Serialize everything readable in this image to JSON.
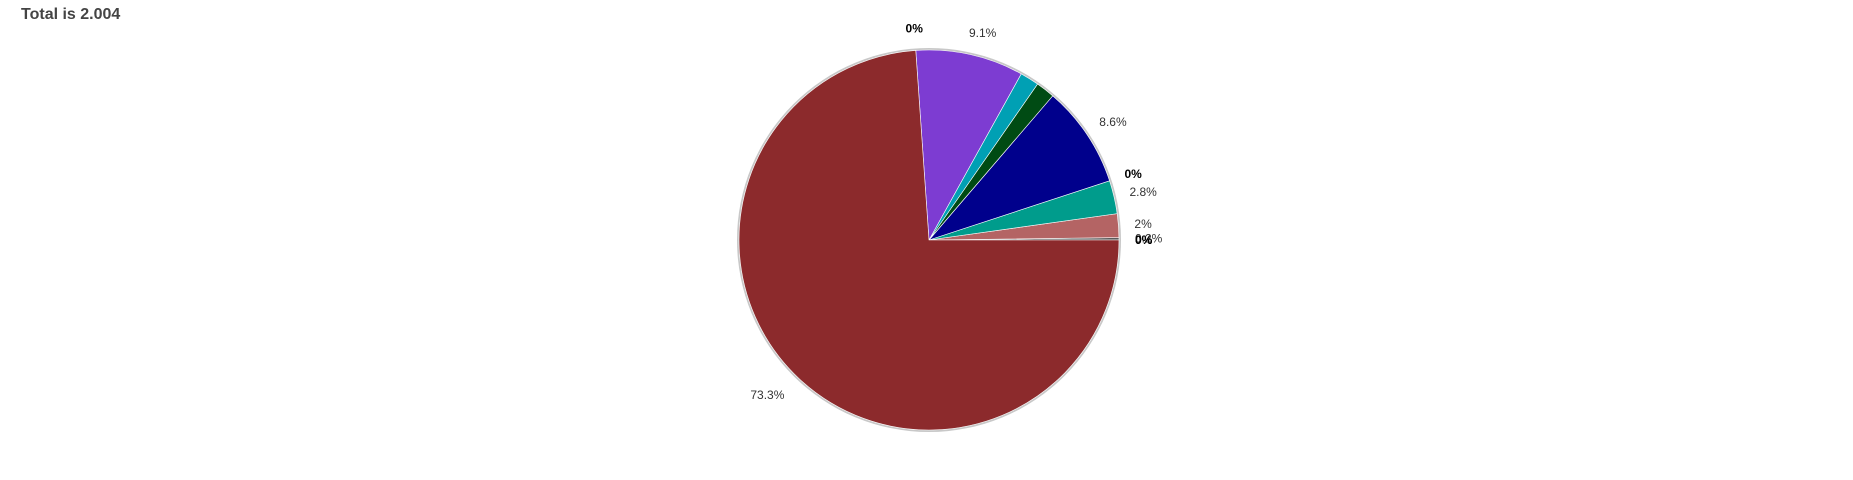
{
  "header": {
    "title": "Total is 2.004"
  },
  "chart_data": {
    "type": "pie",
    "start_angle_deg": 0,
    "direction": "counterclockwise",
    "ring_color": "#c8c8c8",
    "slices": [
      {
        "label": "0.2%",
        "percent": 0.2,
        "color": "#5a5a5a"
      },
      {
        "label": "2%",
        "percent": 2.0,
        "color": "#b46464"
      },
      {
        "label": "2.8%",
        "percent": 2.8,
        "color": "#009c8c"
      },
      {
        "label": "0%",
        "percent": 0.0,
        "color": "#c87832"
      },
      {
        "label": "8.6%",
        "percent": 8.6,
        "color": "#00008c"
      },
      {
        "label": "",
        "percent": 1.6,
        "color": "#004b14"
      },
      {
        "label": "",
        "percent": 1.6,
        "color": "#00a0b4"
      },
      {
        "label": "9.1%",
        "percent": 9.1,
        "color": "#7d3cd2"
      },
      {
        "label": "0%",
        "percent": 0.0,
        "color": "#c8aa00"
      },
      {
        "label": "73.3%",
        "percent": 73.3,
        "color": "#8c2a2c"
      },
      {
        "label": "0%",
        "percent": 0.0,
        "color": "#404040"
      },
      {
        "label": "0%",
        "percent": 0.0,
        "color": "#404040"
      }
    ]
  }
}
